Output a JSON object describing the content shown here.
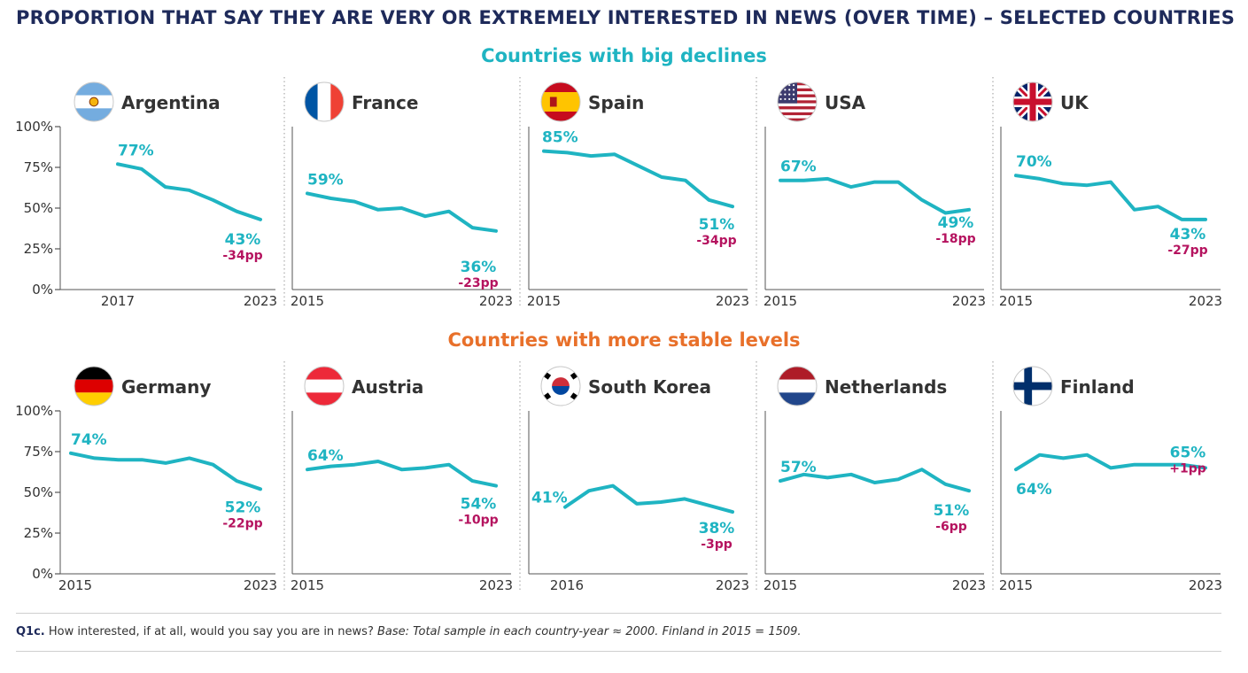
{
  "title": "PROPORTION THAT SAY THEY ARE VERY OR EXTREMELY INTERESTED IN NEWS (OVER TIME) – SELECTED COUNTRIES",
  "sections": {
    "decline": "Countries with big declines",
    "stable": "Countries with more stable levels"
  },
  "footnote": {
    "question_id": "Q1c.",
    "question": " How interested, if at all, would you say you are in news? ",
    "base": "Base: Total sample in each country-year ≈ 2000. Finland in 2015 = 1509."
  },
  "colors": {
    "line": "#1fb4c2",
    "change": "#b5135f",
    "title": "#1e2a5a",
    "decline_head": "#1fb4c2",
    "stable_head": "#e8702a"
  },
  "y_ticks": [
    "100%",
    "75%",
    "50%",
    "25%",
    "0%"
  ],
  "chart_data": [
    {
      "type": "line",
      "country": "Argentina",
      "flag": "argentina-flag",
      "group": "decline",
      "x": [
        2017,
        2018,
        2019,
        2020,
        2021,
        2022,
        2023
      ],
      "y": [
        77,
        74,
        63,
        61,
        55,
        48,
        43
      ],
      "start_label": "77%",
      "end_label": "43%",
      "change": "-34pp",
      "x_tick_labels": [
        "2017",
        "2023"
      ],
      "ylim": [
        0,
        100
      ]
    },
    {
      "type": "line",
      "country": "France",
      "flag": "france-flag",
      "group": "decline",
      "x": [
        2015,
        2016,
        2017,
        2018,
        2019,
        2020,
        2021,
        2022,
        2023
      ],
      "y": [
        59,
        56,
        54,
        49,
        50,
        45,
        48,
        38,
        36
      ],
      "start_label": "59%",
      "end_label": "36%",
      "change": "-23pp",
      "x_tick_labels": [
        "2015",
        "2023"
      ],
      "ylim": [
        0,
        100
      ]
    },
    {
      "type": "line",
      "country": "Spain",
      "flag": "spain-flag",
      "group": "decline",
      "x": [
        2015,
        2016,
        2017,
        2018,
        2019,
        2020,
        2021,
        2022,
        2023
      ],
      "y": [
        85,
        84,
        82,
        83,
        76,
        69,
        67,
        55,
        51
      ],
      "start_label": "85%",
      "end_label": "51%",
      "change": "-34pp",
      "x_tick_labels": [
        "2015",
        "2023"
      ],
      "ylim": [
        0,
        100
      ]
    },
    {
      "type": "line",
      "country": "USA",
      "flag": "usa-flag",
      "group": "decline",
      "x": [
        2015,
        2016,
        2017,
        2018,
        2019,
        2020,
        2021,
        2022,
        2023
      ],
      "y": [
        67,
        67,
        68,
        63,
        66,
        66,
        55,
        47,
        49
      ],
      "start_label": "67%",
      "end_label": "49%",
      "change": "-18pp",
      "x_tick_labels": [
        "2015",
        "2023"
      ],
      "ylim": [
        0,
        100
      ]
    },
    {
      "type": "line",
      "country": "UK",
      "flag": "uk-flag",
      "group": "decline",
      "x": [
        2015,
        2016,
        2017,
        2018,
        2019,
        2020,
        2021,
        2022,
        2023
      ],
      "y": [
        70,
        68,
        65,
        64,
        66,
        49,
        51,
        43,
        43
      ],
      "start_label": "70%",
      "end_label": "43%",
      "change": "-27pp",
      "x_tick_labels": [
        "2015",
        "2023"
      ],
      "ylim": [
        0,
        100
      ]
    },
    {
      "type": "line",
      "country": "Germany",
      "flag": "germany-flag",
      "group": "stable",
      "x": [
        2015,
        2016,
        2017,
        2018,
        2019,
        2020,
        2021,
        2022,
        2023
      ],
      "y": [
        74,
        71,
        70,
        70,
        68,
        71,
        67,
        57,
        52
      ],
      "start_label": "74%",
      "end_label": "52%",
      "change": "-22pp",
      "x_tick_labels": [
        "2015",
        "2023"
      ],
      "ylim": [
        0,
        100
      ]
    },
    {
      "type": "line",
      "country": "Austria",
      "flag": "austria-flag",
      "group": "stable",
      "x": [
        2015,
        2016,
        2017,
        2018,
        2019,
        2020,
        2021,
        2022,
        2023
      ],
      "y": [
        64,
        66,
        67,
        69,
        64,
        65,
        67,
        57,
        54
      ],
      "start_label": "64%",
      "end_label": "54%",
      "change": "-10pp",
      "x_tick_labels": [
        "2015",
        "2023"
      ],
      "ylim": [
        0,
        100
      ]
    },
    {
      "type": "line",
      "country": "South Korea",
      "flag": "south-korea-flag",
      "group": "stable",
      "x": [
        2016,
        2017,
        2018,
        2019,
        2020,
        2021,
        2022,
        2023
      ],
      "y": [
        41,
        51,
        54,
        43,
        44,
        46,
        42,
        38
      ],
      "start_label": "41%",
      "end_label": "38%",
      "change": "-3pp",
      "x_tick_labels": [
        "2016",
        "2023"
      ],
      "ylim": [
        0,
        100
      ]
    },
    {
      "type": "line",
      "country": "Netherlands",
      "flag": "netherlands-flag",
      "group": "stable",
      "x": [
        2015,
        2016,
        2017,
        2018,
        2019,
        2020,
        2021,
        2022,
        2023
      ],
      "y": [
        57,
        61,
        59,
        61,
        56,
        58,
        64,
        55,
        51
      ],
      "start_label": "57%",
      "end_label": "51%",
      "change": "-6pp",
      "x_tick_labels": [
        "2015",
        "2023"
      ],
      "ylim": [
        0,
        100
      ]
    },
    {
      "type": "line",
      "country": "Finland",
      "flag": "finland-flag",
      "group": "stable",
      "x": [
        2015,
        2016,
        2017,
        2018,
        2019,
        2020,
        2021,
        2022,
        2023
      ],
      "y": [
        64,
        73,
        71,
        73,
        65,
        67,
        67,
        67,
        65
      ],
      "start_label": "64%",
      "end_label": "65%",
      "change": "+1pp",
      "x_tick_labels": [
        "2015",
        "2023"
      ],
      "ylim": [
        0,
        100
      ]
    }
  ]
}
